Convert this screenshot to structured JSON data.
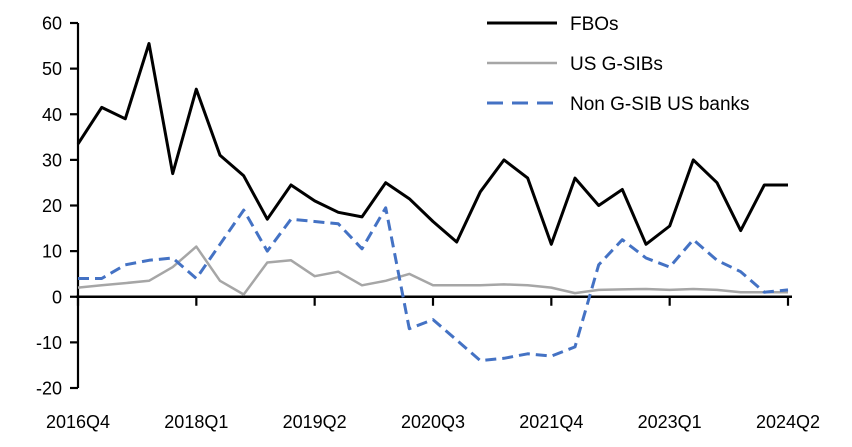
{
  "chart_data": {
    "type": "line",
    "title": "",
    "xlabel": "",
    "ylabel": "",
    "grid": false,
    "legend_position": "top-right",
    "ylim": [
      -20,
      60
    ],
    "y_ticks": [
      60,
      50,
      40,
      30,
      20,
      10,
      0,
      -10,
      -20
    ],
    "x_tick_labels": [
      "2016Q4",
      "2018Q1",
      "2019Q2",
      "2020Q3",
      "2021Q4",
      "2023Q1",
      "2024Q2"
    ],
    "x_tick_every": 5,
    "categories": [
      "2016Q4",
      "2017Q1",
      "2017Q2",
      "2017Q3",
      "2017Q4",
      "2018Q1",
      "2018Q2",
      "2018Q3",
      "2018Q4",
      "2019Q1",
      "2019Q2",
      "2019Q3",
      "2019Q4",
      "2020Q1",
      "2020Q2",
      "2020Q3",
      "2020Q4",
      "2021Q1",
      "2021Q2",
      "2021Q3",
      "2021Q4",
      "2022Q1",
      "2022Q2",
      "2022Q3",
      "2022Q4",
      "2023Q1",
      "2023Q2",
      "2023Q3",
      "2023Q4",
      "2024Q1",
      "2024Q2"
    ],
    "series": [
      {
        "name": "FBOs",
        "color": "#000000",
        "dash": "solid",
        "stroke_width": 3,
        "values": [
          33.5,
          41.5,
          39,
          55.5,
          27,
          45.5,
          31,
          26.5,
          17,
          24.5,
          21,
          18.5,
          17.5,
          25,
          21.5,
          16.5,
          12,
          23,
          30,
          26,
          11.5,
          26,
          20,
          23.5,
          11.5,
          15.5,
          30,
          25,
          14.5,
          24.5,
          24.5
        ]
      },
      {
        "name": "US G-SIBs",
        "color": "#a6a6a6",
        "dash": "solid",
        "stroke_width": 2.5,
        "values": [
          2,
          2.5,
          3,
          3.5,
          6.5,
          11,
          3.5,
          0.5,
          7.5,
          8,
          4.5,
          5.5,
          2.5,
          3.5,
          5,
          2.5,
          2.5,
          2.5,
          2.7,
          2.5,
          2,
          0.8,
          1.5,
          1.6,
          1.7,
          1.5,
          1.7,
          1.5,
          1,
          1,
          1
        ]
      },
      {
        "name": "Non G-SIB US banks",
        "color": "#4472c4",
        "dash": "dashed",
        "stroke_width": 3,
        "values": [
          4,
          4,
          7,
          8,
          8.5,
          4,
          11.5,
          19,
          10,
          17,
          16.5,
          16,
          10.5,
          19.5,
          -7,
          -5,
          -9.5,
          -14,
          -13.5,
          -12.5,
          -13,
          -11,
          7,
          12.5,
          8.5,
          6.5,
          12.5,
          8,
          5.5,
          1,
          1.5
        ]
      }
    ]
  }
}
